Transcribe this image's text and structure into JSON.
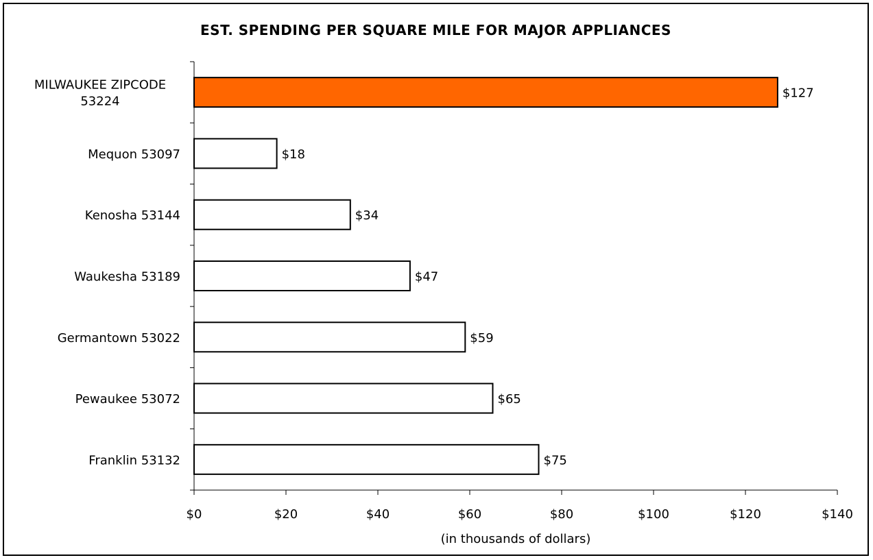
{
  "chart_data": {
    "type": "bar",
    "orientation": "horizontal",
    "title": "EST. SPENDING PER SQUARE MILE FOR MAJOR APPLIANCES",
    "xlabel": "(in thousands of dollars)",
    "ylabel": "",
    "categories": [
      [
        "MILWAUKEE ZIPCODE",
        "53224"
      ],
      [
        "Mequon 53097"
      ],
      [
        "Kenosha 53144"
      ],
      [
        "Waukesha 53189"
      ],
      [
        "Germantown 53022"
      ],
      [
        "Pewaukee 53072"
      ],
      [
        "Franklin 53132"
      ]
    ],
    "values": [
      127,
      18,
      34,
      47,
      59,
      65,
      75
    ],
    "value_labels": [
      "$127",
      "$18",
      "$34",
      "$47",
      "$59",
      "$65",
      "$75"
    ],
    "bar_colors": [
      "#ff6600",
      "#ffffff",
      "#ffffff",
      "#ffffff",
      "#ffffff",
      "#ffffff",
      "#ffffff"
    ],
    "xlim": [
      0,
      140
    ],
    "xticks": [
      0,
      20,
      40,
      60,
      80,
      100,
      120,
      140
    ],
    "xtick_labels": [
      "$0",
      "$20",
      "$40",
      "$60",
      "$80",
      "$100",
      "$120",
      "$140"
    ],
    "grid": false,
    "legend": "none"
  }
}
